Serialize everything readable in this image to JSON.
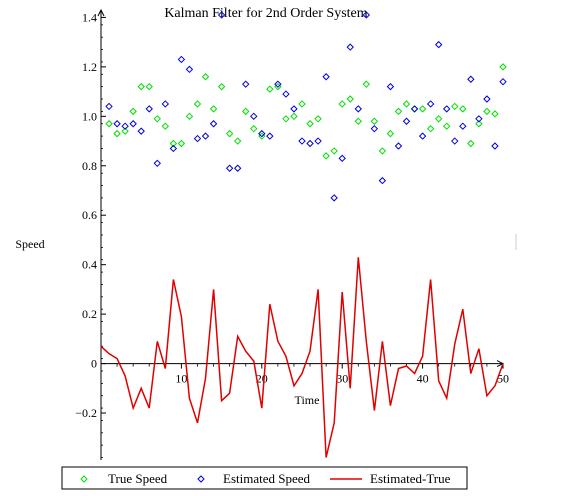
{
  "chart_data": {
    "type": "scatter",
    "title": "Kalman Filter for 2nd Order System",
    "xlabel": "Time",
    "ylabel": "Speed",
    "xlim": [
      0,
      50
    ],
    "ylim": [
      -0.39,
      1.43
    ],
    "xticks": [
      10,
      20,
      30,
      40,
      50
    ],
    "yticks": [
      -0.2,
      0,
      0.2,
      0.4,
      0.6,
      0.8,
      1.0,
      1.2,
      1.4
    ],
    "ytick_labels": [
      "−0.2",
      "0",
      "0.2",
      "0.4",
      "0.6",
      "0.8",
      "1.0",
      "1.2",
      "1.4"
    ],
    "grid": false,
    "legend_position": "bottom",
    "series": [
      {
        "name": "True Speed",
        "kind": "scatter",
        "marker": "diamond",
        "color": "#00e000",
        "x": [
          1,
          2,
          3,
          4,
          5,
          6,
          7,
          8,
          9,
          10,
          11,
          12,
          13,
          14,
          15,
          16,
          17,
          18,
          19,
          20,
          21,
          22,
          23,
          24,
          25,
          26,
          27,
          28,
          29,
          30,
          31,
          32,
          33,
          34,
          35,
          36,
          37,
          38,
          39,
          40,
          41,
          42,
          43,
          44,
          45,
          46,
          47,
          48,
          49,
          50
        ],
        "y": [
          0.97,
          0.93,
          0.94,
          1.02,
          1.12,
          1.12,
          0.99,
          0.96,
          0.89,
          0.89,
          1.0,
          1.05,
          1.16,
          1.03,
          1.12,
          0.93,
          0.9,
          1.02,
          0.95,
          0.92,
          1.11,
          1.12,
          0.99,
          1.0,
          1.05,
          0.97,
          0.99,
          0.84,
          0.86,
          1.05,
          1.07,
          0.98,
          1.13,
          0.98,
          0.86,
          0.93,
          1.02,
          1.05,
          1.03,
          1.03,
          0.95,
          0.99,
          0.96,
          1.04,
          1.03,
          0.89,
          0.97,
          1.02,
          1.01,
          1.2
        ]
      },
      {
        "name": "Estimated Speed",
        "kind": "scatter",
        "marker": "diamond",
        "color": "#0000dd",
        "x": [
          1,
          2,
          3,
          4,
          5,
          6,
          7,
          8,
          9,
          10,
          11,
          12,
          13,
          14,
          15,
          16,
          17,
          18,
          19,
          20,
          21,
          22,
          23,
          24,
          25,
          26,
          27,
          28,
          29,
          30,
          31,
          32,
          33,
          34,
          35,
          36,
          37,
          38,
          39,
          40,
          41,
          42,
          43,
          44,
          45,
          46,
          47,
          48,
          49,
          50
        ],
        "y": [
          1.04,
          0.97,
          0.96,
          0.97,
          0.94,
          1.03,
          0.81,
          1.05,
          0.87,
          1.23,
          1.19,
          0.91,
          0.92,
          0.97,
          1.41,
          0.79,
          0.79,
          1.13,
          1.0,
          0.93,
          0.92,
          1.13,
          1.09,
          1.03,
          0.9,
          0.89,
          0.9,
          1.16,
          0.67,
          0.83,
          1.28,
          1.03,
          1.41,
          0.95,
          0.74,
          1.12,
          0.88,
          0.98,
          1.03,
          0.92,
          1.05,
          1.29,
          1.03,
          0.9,
          0.96,
          1.15,
          0.99,
          1.07,
          0.88,
          1.14
        ]
      },
      {
        "name": "Estimated-True",
        "kind": "line",
        "color": "#e00000",
        "x": [
          0,
          1,
          2,
          3,
          4,
          5,
          6,
          7,
          8,
          9,
          10,
          11,
          12,
          13,
          14,
          15,
          16,
          17,
          18,
          19,
          20,
          21,
          22,
          23,
          24,
          25,
          26,
          27,
          28,
          29,
          30,
          31,
          32,
          33,
          34,
          35,
          36,
          37,
          38,
          39,
          40,
          41,
          42,
          43,
          44,
          45,
          46,
          47,
          48,
          49,
          50
        ],
        "y": [
          0.07,
          0.04,
          0.02,
          -0.05,
          -0.18,
          -0.1,
          -0.18,
          0.09,
          -0.02,
          0.34,
          0.19,
          -0.14,
          -0.24,
          -0.06,
          0.3,
          -0.15,
          -0.12,
          0.11,
          0.05,
          0.01,
          -0.18,
          0.24,
          0.09,
          0.03,
          -0.09,
          -0.04,
          0.05,
          0.3,
          -0.38,
          -0.24,
          0.29,
          -0.1,
          0.43,
          0.09,
          -0.19,
          0.09,
          -0.17,
          -0.02,
          -0.01,
          -0.04,
          0.03,
          0.34,
          -0.07,
          -0.14,
          0.08,
          0.22,
          -0.04,
          0.06,
          -0.13,
          -0.09,
          0.0
        ]
      }
    ]
  }
}
